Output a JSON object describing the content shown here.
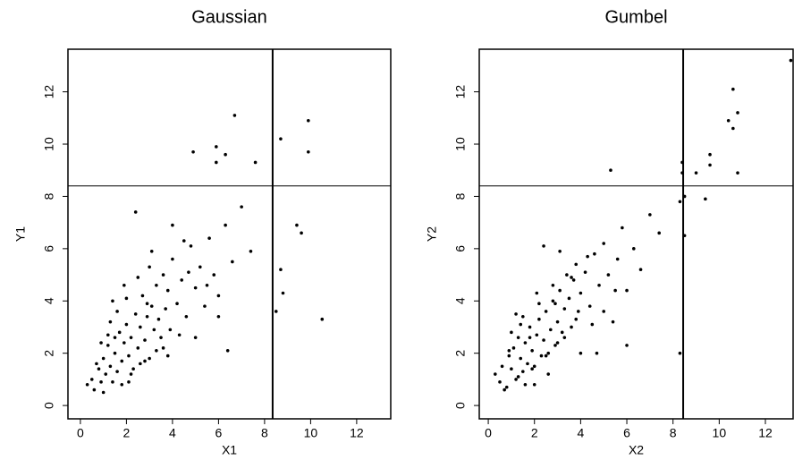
{
  "chart_data": [
    {
      "type": "scatter",
      "title": "Gaussian",
      "x_label": "X1",
      "y_label": "Y1",
      "x": [
        0.3,
        0.5,
        0.6,
        0.8,
        0.9,
        1.0,
        1.1,
        1.2,
        1.3,
        1.4,
        1.5,
        1.6,
        1.7,
        1.8,
        1.9,
        2.0,
        2.1,
        2.2,
        2.3,
        2.4,
        2.5,
        2.6,
        2.7,
        2.8,
        2.9,
        3.0,
        3.1,
        3.2,
        3.3,
        3.4,
        3.5,
        3.6,
        3.7,
        3.8,
        3.9,
        4.0,
        4.2,
        4.4,
        4.6,
        4.8,
        5.0,
        5.2,
        5.4,
        5.6,
        5.8,
        6.0,
        6.3,
        6.6,
        7.0,
        7.4,
        0.7,
        1.0,
        1.3,
        1.5,
        1.8,
        2.0,
        2.2,
        2.5,
        2.8,
        3.0,
        3.3,
        3.6,
        4.0,
        4.3,
        4.5,
        5.0,
        5.5,
        6.0,
        1.2,
        1.6,
        2.1,
        2.6,
        3.1,
        3.8,
        4.7,
        2.4,
        1.9,
        0.9,
        1.4,
        2.9,
        6.7,
        9.9,
        8.7,
        9.9,
        5.9,
        6.3,
        7.6,
        5.9,
        4.9,
        9.4,
        9.6,
        8.7,
        8.8,
        8.5,
        10.5,
        6.4
      ],
      "y": [
        0.8,
        1.0,
        0.6,
        1.4,
        0.9,
        1.8,
        1.2,
        2.3,
        1.5,
        0.9,
        2.0,
        1.3,
        2.8,
        1.7,
        2.4,
        3.1,
        1.9,
        2.6,
        1.4,
        3.5,
        2.2,
        3.0,
        4.2,
        2.5,
        3.4,
        1.8,
        3.8,
        2.9,
        4.6,
        3.3,
        2.6,
        5.0,
        3.7,
        4.4,
        2.9,
        5.6,
        3.9,
        4.8,
        3.4,
        6.1,
        4.5,
        5.3,
        3.8,
        6.4,
        5.0,
        4.2,
        6.9,
        5.5,
        7.6,
        5.9,
        1.6,
        0.5,
        3.2,
        2.6,
        0.8,
        4.1,
        1.2,
        4.9,
        1.7,
        5.3,
        2.1,
        2.2,
        6.9,
        2.7,
        6.3,
        2.6,
        4.6,
        3.4,
        2.7,
        3.6,
        0.9,
        1.6,
        5.9,
        1.9,
        5.1,
        7.4,
        4.6,
        2.4,
        4.0,
        3.9,
        11.1,
        10.9,
        10.2,
        9.7,
        9.9,
        9.6,
        9.3,
        9.3,
        9.7,
        6.9,
        6.6,
        5.2,
        4.3,
        3.6,
        3.3,
        2.1
      ],
      "xlim": [
        -0.54,
        13.48
      ],
      "ylim": [
        -0.51,
        13.63
      ],
      "xticks": [
        0,
        2,
        4,
        6,
        8,
        10,
        12
      ],
      "yticks": [
        0,
        2,
        4,
        6,
        8,
        10,
        12
      ],
      "reference_lines": {
        "x": 8.35,
        "y": 8.4
      },
      "color": "#000000"
    },
    {
      "type": "scatter",
      "title": "Gumbel",
      "x_label": "X2",
      "y_label": "Y2",
      "x": [
        0.3,
        0.5,
        0.6,
        0.8,
        0.9,
        1.0,
        1.1,
        1.2,
        1.3,
        1.4,
        1.5,
        1.6,
        1.7,
        1.8,
        1.9,
        2.0,
        2.1,
        2.2,
        2.3,
        2.4,
        2.5,
        2.6,
        2.7,
        2.8,
        2.9,
        3.0,
        3.1,
        3.2,
        3.3,
        3.4,
        3.5,
        3.6,
        3.7,
        3.8,
        3.9,
        4.0,
        4.2,
        4.4,
        4.6,
        4.8,
        5.0,
        5.2,
        5.4,
        5.6,
        5.8,
        6.0,
        6.3,
        6.6,
        7.0,
        7.4,
        0.7,
        1.0,
        1.3,
        1.5,
        1.8,
        2.0,
        2.2,
        2.5,
        2.8,
        3.0,
        3.3,
        3.6,
        4.0,
        4.3,
        4.5,
        5.0,
        5.5,
        6.0,
        1.2,
        1.6,
        2.1,
        2.6,
        3.1,
        3.8,
        4.7,
        2.4,
        1.9,
        0.9,
        1.4,
        2.9,
        13.1,
        10.6,
        10.8,
        10.4,
        10.6,
        9.6,
        9.6,
        10.8,
        8.4,
        8.4,
        9.0,
        8.5,
        9.4,
        8.3,
        8.5,
        8.3,
        5.3
      ],
      "y": [
        1.2,
        0.9,
        1.5,
        0.7,
        1.9,
        1.4,
        2.2,
        1.0,
        2.6,
        1.8,
        1.3,
        2.4,
        1.6,
        3.0,
        2.1,
        1.5,
        2.7,
        3.3,
        1.9,
        2.5,
        3.6,
        2.0,
        2.9,
        4.0,
        2.3,
        3.2,
        4.4,
        2.8,
        3.7,
        5.0,
        4.1,
        3.0,
        4.8,
        5.4,
        3.6,
        4.3,
        5.1,
        3.8,
        5.8,
        4.6,
        6.2,
        5.0,
        3.2,
        5.6,
        6.8,
        4.4,
        6.0,
        5.2,
        7.3,
        6.6,
        0.6,
        2.8,
        1.1,
        3.4,
        2.6,
        0.8,
        3.9,
        1.9,
        4.6,
        2.4,
        2.6,
        4.9,
        2.0,
        5.7,
        3.1,
        3.6,
        4.4,
        2.3,
        3.5,
        0.8,
        4.3,
        1.2,
        5.9,
        3.3,
        2.0,
        6.1,
        1.4,
        2.1,
        3.1,
        3.9,
        13.2,
        12.1,
        11.2,
        10.9,
        10.6,
        9.6,
        9.2,
        8.9,
        9.3,
        8.9,
        8.9,
        8.0,
        7.9,
        7.8,
        6.5,
        2.0,
        9.0
      ],
      "xlim": [
        -0.39,
        13.2
      ],
      "ylim": [
        -0.51,
        13.63
      ],
      "xticks": [
        0,
        2,
        4,
        6,
        8,
        10,
        12
      ],
      "yticks": [
        0,
        2,
        4,
        6,
        8,
        10,
        12
      ],
      "reference_lines": {
        "x": 8.44,
        "y": 8.4
      },
      "color": "#000000"
    }
  ]
}
